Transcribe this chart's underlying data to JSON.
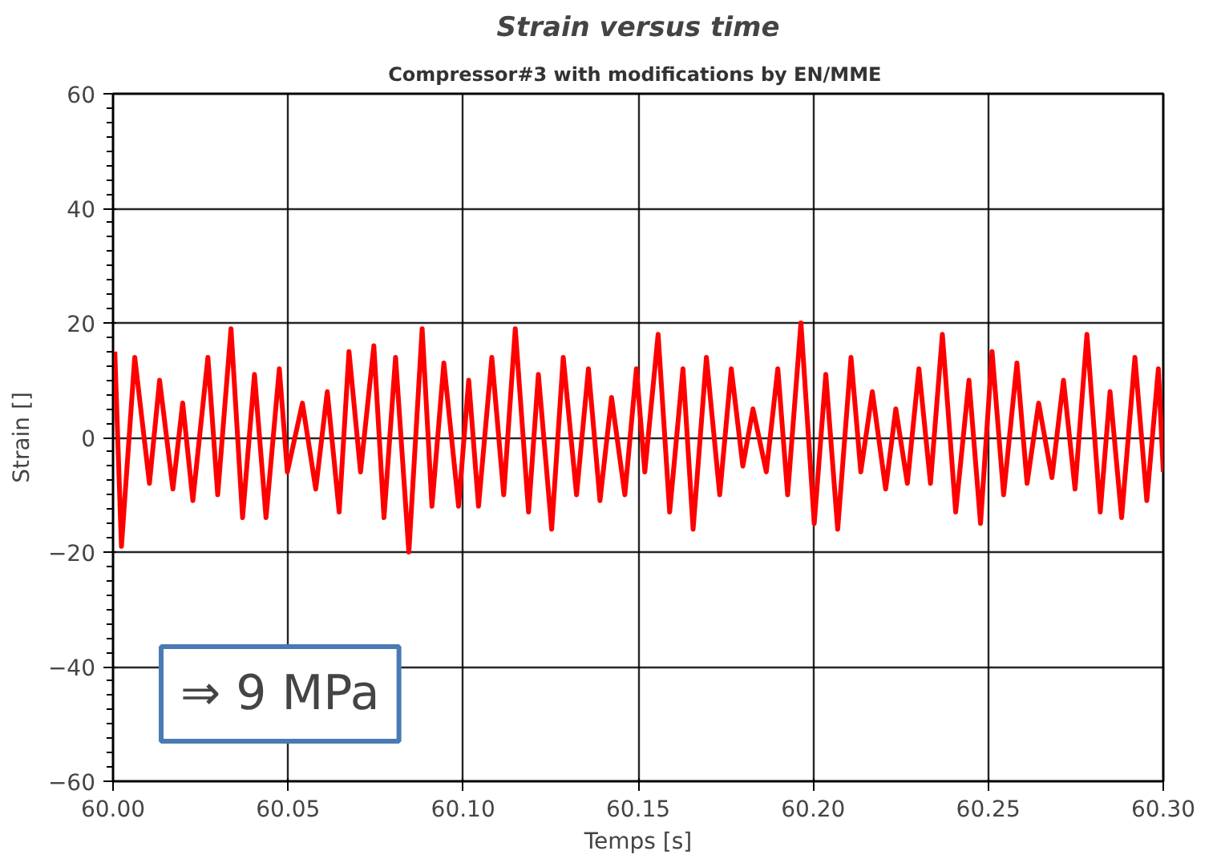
{
  "chart_data": {
    "type": "line",
    "title": "Strain versus time",
    "subtitle": "Compressor#3 with  modifications by EN/MME",
    "xlabel": "Temps [s]",
    "ylabel": "Strain []",
    "annotations": [
      "⇒ 9 MPa"
    ],
    "x": [
      60.0005,
      60.0024,
      60.0062,
      60.0104,
      60.0133,
      60.0171,
      60.0199,
      60.0228,
      60.0271,
      60.0299,
      60.0337,
      60.037,
      60.0404,
      60.0437,
      60.0475,
      60.0498,
      60.0541,
      60.0579,
      60.0612,
      60.0646,
      60.0674,
      60.0707,
      60.0745,
      60.0774,
      60.0807,
      60.0845,
      60.0883,
      60.0911,
      60.0945,
      60.0987,
      60.1016,
      60.1044,
      60.1082,
      60.1116,
      60.1149,
      60.1187,
      60.1215,
      60.1253,
      60.1286,
      60.1324,
      60.1358,
      60.1391,
      60.1424,
      60.1462,
      60.1495,
      60.1519,
      60.1557,
      60.159,
      60.1628,
      60.1657,
      60.1695,
      60.1733,
      60.1766,
      60.1799,
      60.1828,
      60.1866,
      60.1899,
      60.1927,
      60.1965,
      60.2003,
      60.2036,
      60.207,
      60.2108,
      60.2136,
      60.2169,
      60.2207,
      60.2236,
      60.2269,
      60.2302,
      60.2335,
      60.2369,
      60.2407,
      60.2445,
      60.2478,
      60.2511,
      60.2544,
      60.2582,
      60.2611,
      60.2644,
      60.2682,
      60.2715,
      60.2748,
      60.2782,
      60.282,
      60.2848,
      60.2881,
      60.2919,
      60.2953,
      60.2986,
      60.3
    ],
    "series": [
      {
        "color": "#ff0000",
        "values": [
          15,
          -19,
          14,
          -8,
          10,
          -9,
          6,
          -11,
          14,
          -10,
          19,
          -14,
          11,
          -14,
          12,
          -6,
          6,
          -9,
          8,
          -13,
          15,
          -6,
          16,
          -14,
          14,
          -20,
          19,
          -12,
          13,
          -12,
          10,
          -12,
          14,
          -10,
          19,
          -13,
          11,
          -16,
          14,
          -10,
          12,
          -11,
          7,
          -10,
          12,
          -6,
          18,
          -13,
          12,
          -16,
          14,
          -10,
          12,
          -5,
          5,
          -6,
          12,
          -10,
          20,
          -15,
          11,
          -16,
          14,
          -6,
          8,
          -9,
          5,
          -8,
          12,
          -8,
          18,
          -13,
          10,
          -15,
          15,
          -10,
          13,
          -8,
          6,
          -7,
          10,
          -9,
          18,
          -13,
          8,
          -14,
          14,
          -11,
          12,
          -6
        ]
      }
    ],
    "xlim": [
      60.0,
      60.3
    ],
    "ylim": [
      -60,
      60
    ],
    "xticks": [
      {
        "value": 60.0,
        "label": "60.00"
      },
      {
        "value": 60.05,
        "label": "60.05"
      },
      {
        "value": 60.1,
        "label": "60.10"
      },
      {
        "value": 60.15,
        "label": "60.15"
      },
      {
        "value": 60.2,
        "label": "60.20"
      },
      {
        "value": 60.25,
        "label": "60.25"
      },
      {
        "value": 60.3,
        "label": "60.30"
      }
    ],
    "yticks": [
      -60,
      -40,
      -20,
      0,
      20,
      40,
      60
    ],
    "grid": true,
    "marker": "none",
    "line_style": "solid"
  }
}
